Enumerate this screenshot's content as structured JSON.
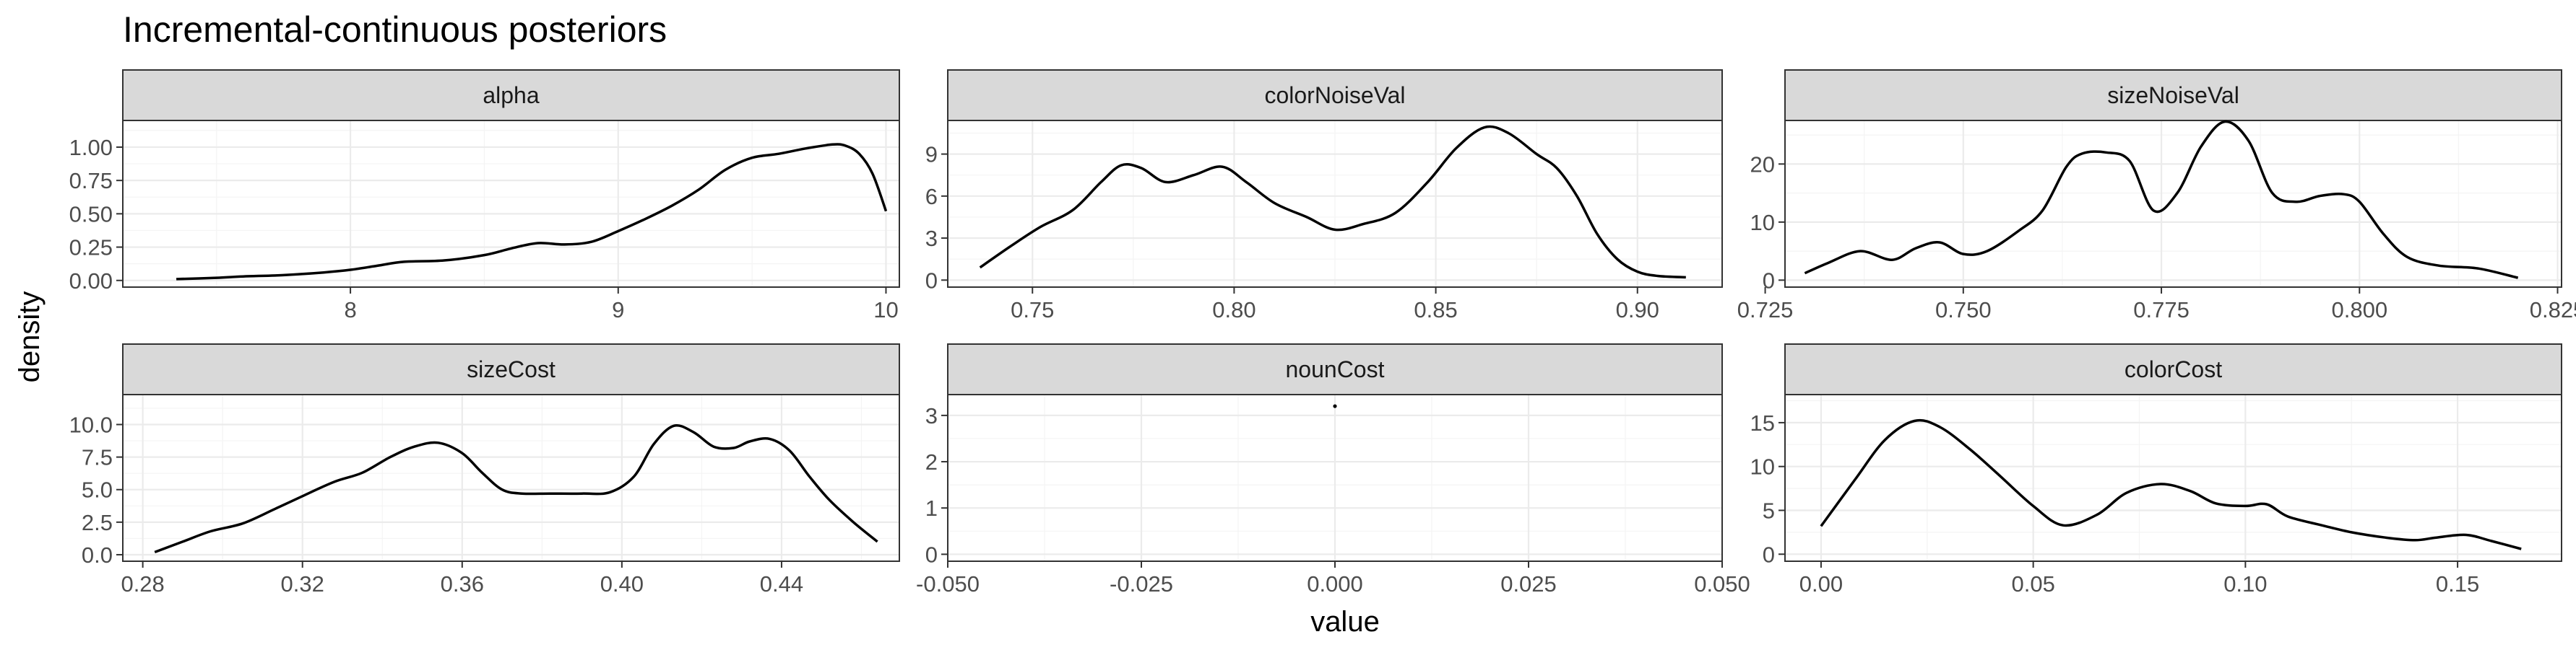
{
  "chart_data": {
    "type": "line",
    "title": "Incremental-continuous posteriors",
    "xlabel": "value",
    "ylabel": "density",
    "legend": "none",
    "grid": true,
    "facets": [
      {
        "name": "alpha",
        "xlim": [
          7.15,
          10.05
        ],
        "ylim": [
          -0.05,
          1.2
        ],
        "xticks": [
          {
            "v": 8,
            "label": "8"
          },
          {
            "v": 9,
            "label": "9"
          },
          {
            "v": 10,
            "label": "10"
          }
        ],
        "yticks": [
          {
            "v": 0,
            "label": "0.00"
          },
          {
            "v": 0.25,
            "label": "0.25"
          },
          {
            "v": 0.5,
            "label": "0.50"
          },
          {
            "v": 0.75,
            "label": "0.75"
          },
          {
            "v": 1.0,
            "label": "1.00"
          }
        ],
        "x": [
          7.35,
          7.5,
          7.6,
          7.75,
          7.9,
          8.0,
          8.1,
          8.2,
          8.35,
          8.5,
          8.6,
          8.7,
          8.8,
          8.9,
          9.0,
          9.1,
          9.2,
          9.3,
          9.4,
          9.5,
          9.6,
          9.7,
          9.8,
          9.85,
          9.9,
          9.95,
          10.0
        ],
        "y": [
          0.01,
          0.02,
          0.03,
          0.04,
          0.06,
          0.08,
          0.11,
          0.14,
          0.15,
          0.19,
          0.24,
          0.28,
          0.27,
          0.29,
          0.37,
          0.46,
          0.56,
          0.68,
          0.83,
          0.92,
          0.95,
          0.99,
          1.02,
          1.01,
          0.95,
          0.8,
          0.52
        ]
      },
      {
        "name": "colorNoiseVal",
        "xlim": [
          0.729,
          0.921
        ],
        "ylim": [
          -0.5,
          11.4
        ],
        "xticks": [
          {
            "v": 0.75,
            "label": "0.75"
          },
          {
            "v": 0.8,
            "label": "0.80"
          },
          {
            "v": 0.85,
            "label": "0.85"
          },
          {
            "v": 0.9,
            "label": "0.90"
          }
        ],
        "yticks": [
          {
            "v": 0,
            "label": "0"
          },
          {
            "v": 3,
            "label": "3"
          },
          {
            "v": 6,
            "label": "6"
          },
          {
            "v": 9,
            "label": "9"
          }
        ],
        "x": [
          0.737,
          0.745,
          0.752,
          0.76,
          0.767,
          0.772,
          0.777,
          0.783,
          0.79,
          0.797,
          0.803,
          0.81,
          0.818,
          0.825,
          0.832,
          0.84,
          0.848,
          0.855,
          0.862,
          0.868,
          0.875,
          0.88,
          0.885,
          0.89,
          0.895,
          0.9,
          0.905,
          0.912
        ],
        "y": [
          0.9,
          2.5,
          3.8,
          5.0,
          7.0,
          8.2,
          8.0,
          7.0,
          7.5,
          8.1,
          7.0,
          5.5,
          4.5,
          3.6,
          4.0,
          4.8,
          7.0,
          9.4,
          10.9,
          10.5,
          9.0,
          8.0,
          6.0,
          3.3,
          1.5,
          0.6,
          0.3,
          0.2
        ]
      },
      {
        "name": "sizeNoiseVal",
        "xlim": [
          0.7275,
          0.8255
        ],
        "ylim": [
          -1.2,
          27.5
        ],
        "xticks": [
          {
            "v": 0.725,
            "label": "0.725"
          },
          {
            "v": 0.75,
            "label": "0.750"
          },
          {
            "v": 0.775,
            "label": "0.775"
          },
          {
            "v": 0.8,
            "label": "0.800"
          },
          {
            "v": 0.825,
            "label": "0.825"
          }
        ],
        "yticks": [
          {
            "v": 0,
            "label": "0"
          },
          {
            "v": 10,
            "label": "10"
          },
          {
            "v": 20,
            "label": "20"
          }
        ],
        "x": [
          0.73,
          0.733,
          0.737,
          0.741,
          0.744,
          0.747,
          0.75,
          0.753,
          0.757,
          0.76,
          0.763,
          0.765,
          0.768,
          0.771,
          0.774,
          0.777,
          0.78,
          0.783,
          0.786,
          0.789,
          0.792,
          0.795,
          0.798,
          0.8,
          0.803,
          0.806,
          0.81,
          0.815,
          0.82
        ],
        "y": [
          1.2,
          3.0,
          5.0,
          3.5,
          5.5,
          6.5,
          4.5,
          5.0,
          8.5,
          12.0,
          19.5,
          21.8,
          22.0,
          20.5,
          12.0,
          15.0,
          23.0,
          27.3,
          24.0,
          15.0,
          13.5,
          14.5,
          14.8,
          13.5,
          8.0,
          4.0,
          2.5,
          2.0,
          0.4
        ]
      },
      {
        "name": "sizeCost",
        "xlim": [
          0.275,
          0.4695
        ],
        "ylim": [
          -0.5,
          12.3
        ],
        "xticks": [
          {
            "v": 0.28,
            "label": "0.28"
          },
          {
            "v": 0.32,
            "label": "0.32"
          },
          {
            "v": 0.36,
            "label": "0.36"
          },
          {
            "v": 0.4,
            "label": "0.40"
          },
          {
            "v": 0.44,
            "label": "0.44"
          }
        ],
        "yticks": [
          {
            "v": 0,
            "label": "0.0"
          },
          {
            "v": 2.5,
            "label": "2.5"
          },
          {
            "v": 5,
            "label": "5.0"
          },
          {
            "v": 7.5,
            "label": "7.5"
          },
          {
            "v": 10,
            "label": "10.0"
          }
        ],
        "x": [
          0.283,
          0.29,
          0.297,
          0.305,
          0.313,
          0.32,
          0.328,
          0.335,
          0.342,
          0.348,
          0.354,
          0.36,
          0.365,
          0.37,
          0.375,
          0.382,
          0.39,
          0.397,
          0.403,
          0.408,
          0.413,
          0.418,
          0.423,
          0.428,
          0.432,
          0.437,
          0.442,
          0.447,
          0.452,
          0.458,
          0.464
        ],
        "y": [
          0.2,
          1.0,
          1.8,
          2.4,
          3.5,
          4.5,
          5.6,
          6.3,
          7.5,
          8.3,
          8.6,
          7.8,
          6.3,
          5.0,
          4.7,
          4.7,
          4.7,
          4.8,
          6.0,
          8.5,
          9.9,
          9.4,
          8.3,
          8.2,
          8.7,
          8.9,
          8.0,
          6.0,
          4.2,
          2.5,
          1.0
        ]
      },
      {
        "name": "nounCost",
        "xlim": [
          -0.05,
          0.05
        ],
        "ylim": [
          -0.15,
          3.45
        ],
        "xticks": [
          {
            "v": -0.05,
            "label": "-0.050"
          },
          {
            "v": -0.025,
            "label": "-0.025"
          },
          {
            "v": 0,
            "label": "0.000"
          },
          {
            "v": 0.025,
            "label": "0.025"
          },
          {
            "v": 0.05,
            "label": "0.050"
          }
        ],
        "yticks": [
          {
            "v": 0,
            "label": "0"
          },
          {
            "v": 1,
            "label": "1"
          },
          {
            "v": 2,
            "label": "2"
          },
          {
            "v": 3,
            "label": "3"
          }
        ],
        "x": [
          0.0
        ],
        "y": [
          3.2
        ]
      },
      {
        "name": "colorCost",
        "xlim": [
          -0.0085,
          0.1745
        ],
        "ylim": [
          -0.8,
          18.2
        ],
        "xticks": [
          {
            "v": 0,
            "label": "0.00"
          },
          {
            "v": 0.05,
            "label": "0.05"
          },
          {
            "v": 0.1,
            "label": "0.10"
          },
          {
            "v": 0.15,
            "label": "0.15"
          }
        ],
        "yticks": [
          {
            "v": 0,
            "label": "0"
          },
          {
            "v": 5,
            "label": "5"
          },
          {
            "v": 10,
            "label": "10"
          },
          {
            "v": 15,
            "label": "15"
          }
        ],
        "x": [
          0.0,
          0.008,
          0.015,
          0.022,
          0.028,
          0.035,
          0.042,
          0.05,
          0.057,
          0.065,
          0.072,
          0.08,
          0.087,
          0.093,
          0.1,
          0.105,
          0.11,
          0.118,
          0.125,
          0.133,
          0.14,
          0.145,
          0.152,
          0.158,
          0.165
        ],
        "y": [
          3.2,
          8.5,
          13.0,
          15.2,
          14.5,
          12.0,
          9.0,
          5.5,
          3.3,
          4.5,
          7.0,
          8.0,
          7.2,
          5.8,
          5.5,
          5.7,
          4.3,
          3.3,
          2.5,
          1.9,
          1.6,
          1.9,
          2.2,
          1.5,
          0.6
        ]
      }
    ]
  }
}
